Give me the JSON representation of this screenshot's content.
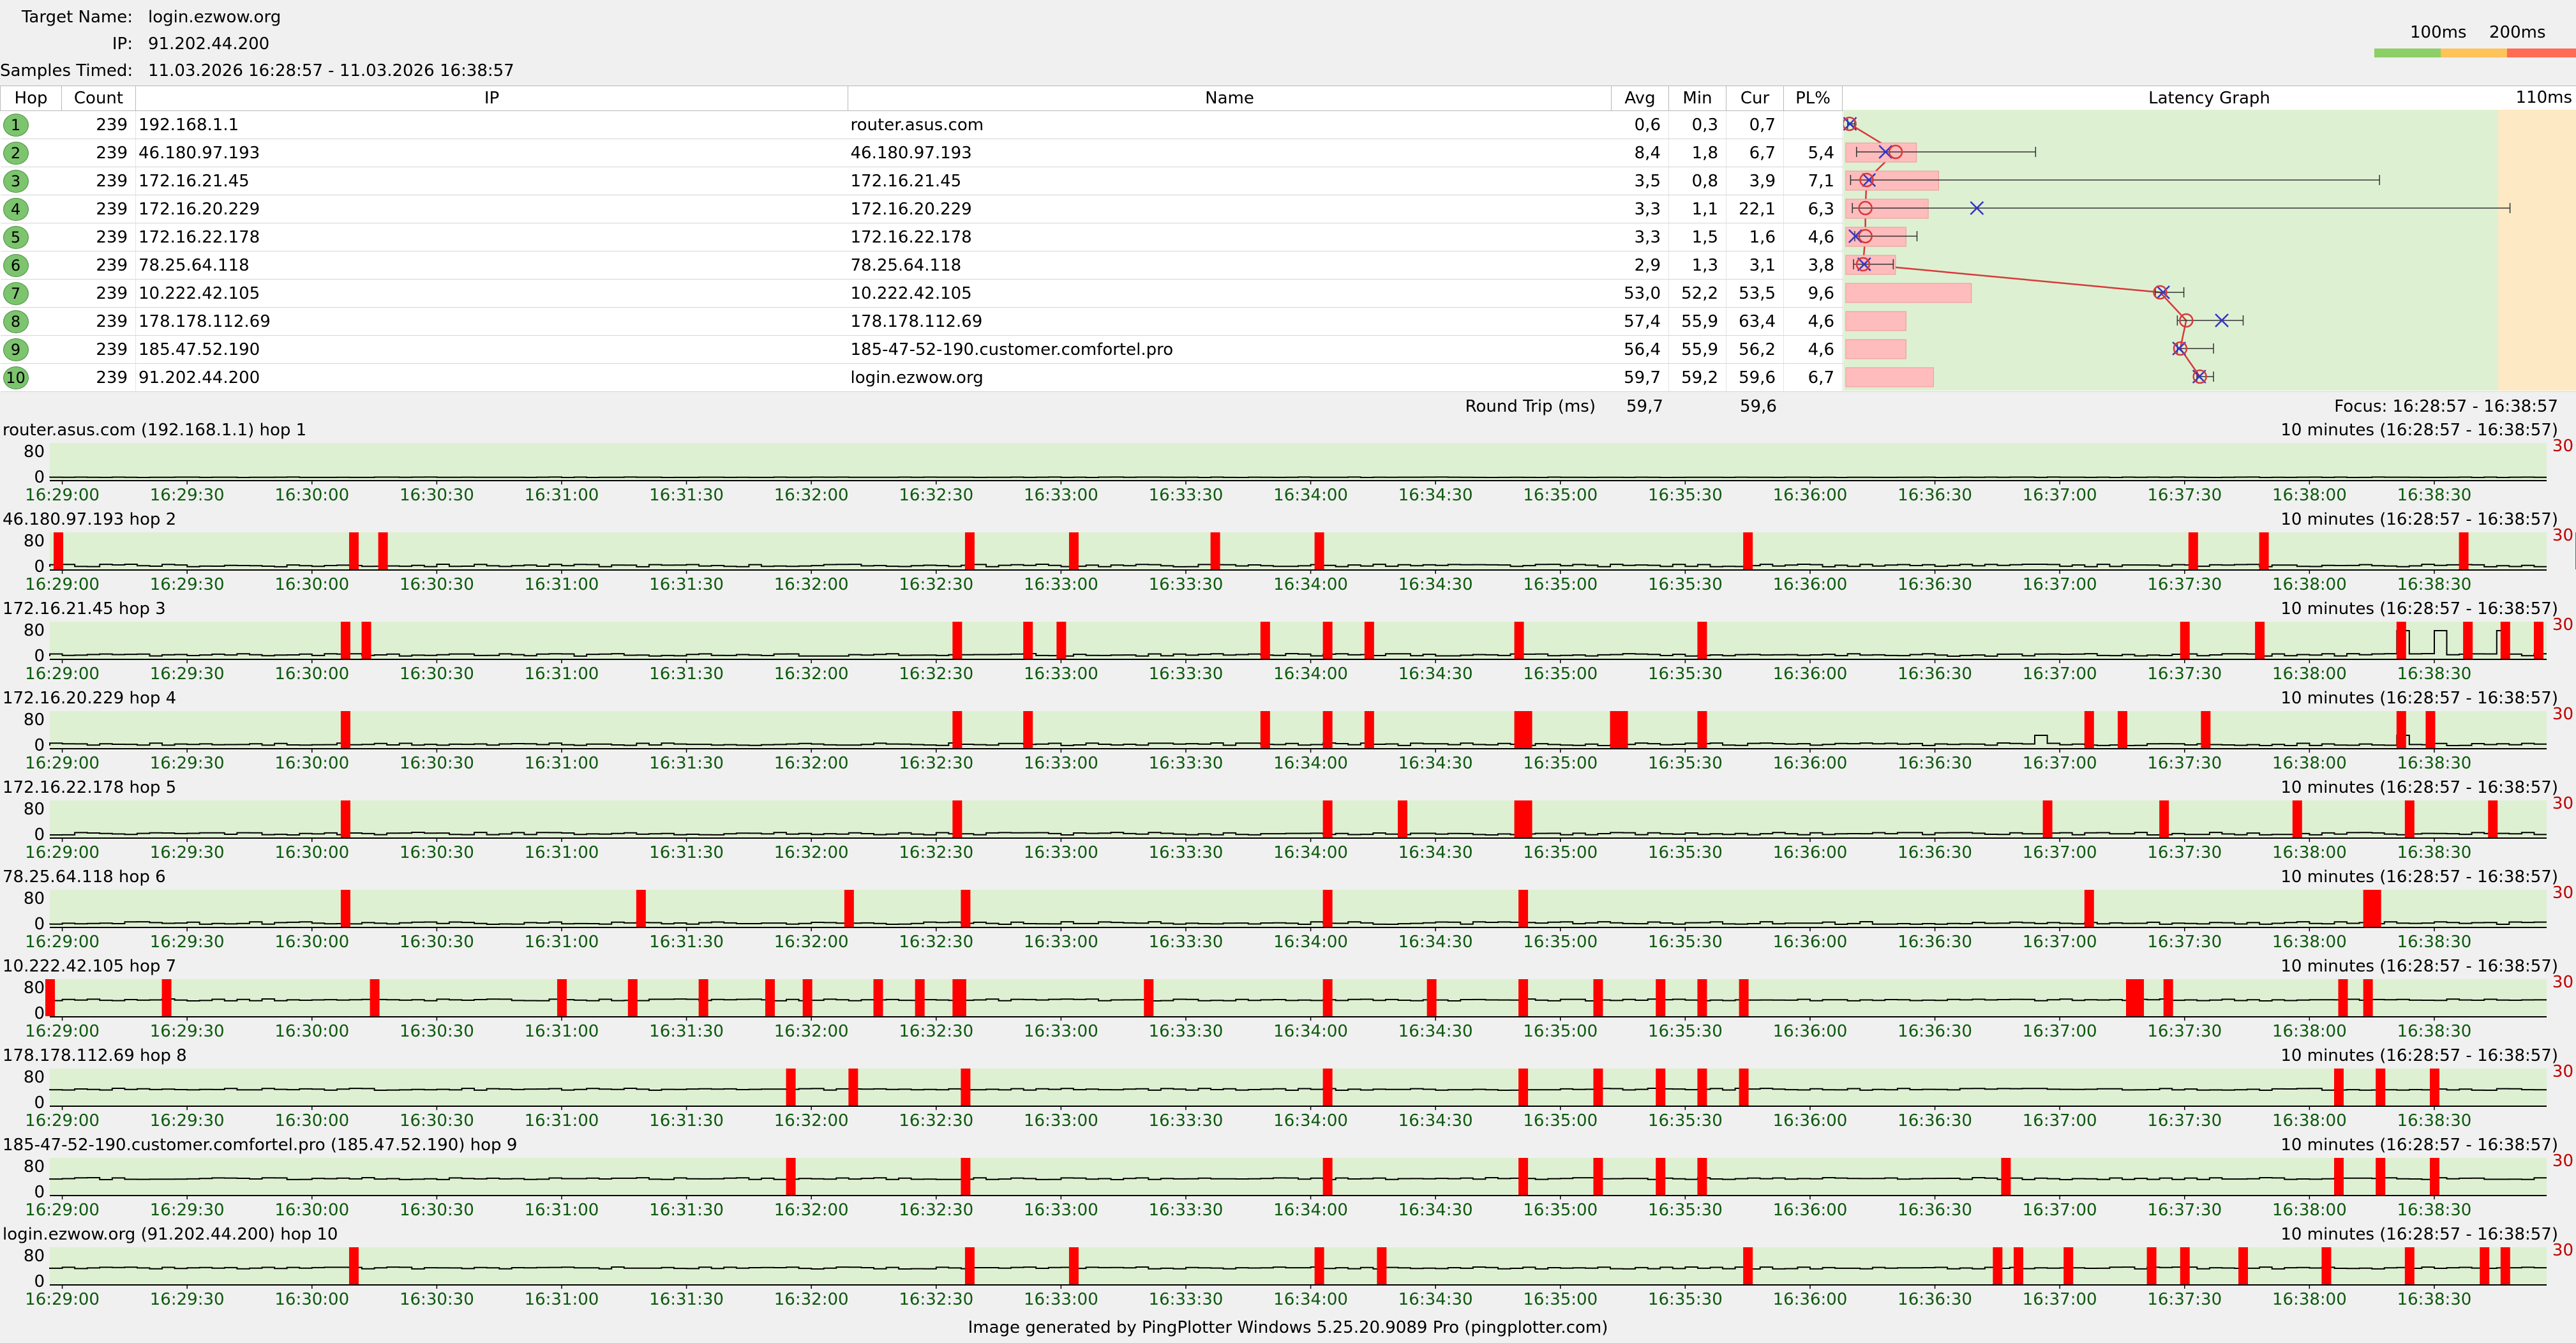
{
  "header": {
    "target_label": "Target Name:",
    "target_value": "login.ezwow.org",
    "ip_label": "IP:",
    "ip_value": "91.202.44.200",
    "samples_label": "Samples Timed:",
    "samples_value": "11.03.2026 16:28:57 - 11.03.2026 16:38:57"
  },
  "legend": {
    "label_100": "100ms",
    "label_200": "200ms",
    "colors": [
      "#8ccf66",
      "#ffc35a",
      "#ff6b55"
    ]
  },
  "table": {
    "columns": {
      "hop": "Hop",
      "count": "Count",
      "ip": "IP",
      "name": "Name",
      "avg": "Avg",
      "min": "Min",
      "cur": "Cur",
      "pl": "PL%",
      "graph": "Latency Graph",
      "scale": "110ms"
    },
    "rows": [
      {
        "hop": "1",
        "count": "239",
        "ip": "192.168.1.1",
        "name": "router.asus.com",
        "avg": "0,6",
        "min": "0,3",
        "cur": "0,7",
        "pl": ""
      },
      {
        "hop": "2",
        "count": "239",
        "ip": "46.180.97.193",
        "name": "46.180.97.193",
        "avg": "8,4",
        "min": "1,8",
        "cur": "6,7",
        "pl": "5,4"
      },
      {
        "hop": "3",
        "count": "239",
        "ip": "172.16.21.45",
        "name": "172.16.21.45",
        "avg": "3,5",
        "min": "0,8",
        "cur": "3,9",
        "pl": "7,1"
      },
      {
        "hop": "4",
        "count": "239",
        "ip": "172.16.20.229",
        "name": "172.16.20.229",
        "avg": "3,3",
        "min": "1,1",
        "cur": "22,1",
        "pl": "6,3"
      },
      {
        "hop": "5",
        "count": "239",
        "ip": "172.16.22.178",
        "name": "172.16.22.178",
        "avg": "3,3",
        "min": "1,5",
        "cur": "1,6",
        "pl": "4,6"
      },
      {
        "hop": "6",
        "count": "239",
        "ip": "78.25.64.118",
        "name": "78.25.64.118",
        "avg": "2,9",
        "min": "1,3",
        "cur": "3,1",
        "pl": "3,8"
      },
      {
        "hop": "7",
        "count": "239",
        "ip": "10.222.42.105",
        "name": "10.222.42.105",
        "avg": "53,0",
        "min": "52,2",
        "cur": "53,5",
        "pl": "9,6"
      },
      {
        "hop": "8",
        "count": "239",
        "ip": "178.178.112.69",
        "name": "178.178.112.69",
        "avg": "57,4",
        "min": "55,9",
        "cur": "63,4",
        "pl": "4,6"
      },
      {
        "hop": "9",
        "count": "239",
        "ip": "185.47.52.190",
        "name": "185-47-52-190.customer.comfortel.pro",
        "avg": "56,4",
        "min": "55,9",
        "cur": "56,2",
        "pl": "4,6"
      },
      {
        "hop": "10",
        "count": "239",
        "ip": "91.202.44.200",
        "name": "login.ezwow.org",
        "avg": "59,7",
        "min": "59,2",
        "cur": "59,6",
        "pl": "6,7"
      }
    ],
    "latency_graph": {
      "max_ms": 110,
      "max_latency_ms": [
        1.5,
        32,
        90,
        112,
        12,
        8,
        57,
        67,
        62,
        62
      ]
    }
  },
  "roundtrip": {
    "label": "Round Trip (ms)",
    "avg": "59,7",
    "cur": "59,6",
    "focus": "Focus: 16:28:57 - 16:38:57"
  },
  "timeline": {
    "range_label": "10 minutes (16:28:57 - 16:38:57)",
    "y_top": "80",
    "y_zero": "0",
    "y_right": "30",
    "ticks": [
      "16:29:00",
      "16:29:30",
      "16:30:00",
      "16:30:30",
      "16:31:00",
      "16:31:30",
      "16:32:00",
      "16:32:30",
      "16:33:00",
      "16:33:30",
      "16:34:00",
      "16:34:30",
      "16:35:00",
      "16:35:30",
      "16:36:00",
      "16:36:30",
      "16:37:00",
      "16:37:30",
      "16:38:00",
      "16:38:30"
    ],
    "panels": [
      {
        "title": "router.asus.com (192.168.1.1) hop 1",
        "loss_at": []
      },
      {
        "title": "46.180.97.193 hop 2",
        "loss_at": [
          73,
          80,
          221,
          246,
          280,
          305,
          408,
          515,
          532,
          580,
          608,
          633,
          653,
          685,
          2
        ]
      },
      {
        "title": "172.16.21.45 hop 3",
        "loss_at": [
          71,
          76,
          218,
          235,
          243,
          292,
          307,
          317,
          353,
          397,
          513,
          531,
          565,
          581,
          590,
          598
        ]
      },
      {
        "title": "172.16.20.229 hop 4",
        "loss_at": [
          71,
          218,
          235,
          292,
          307,
          317,
          353,
          355,
          376,
          378,
          397,
          490,
          498,
          518,
          565,
          572
        ]
      },
      {
        "title": "172.16.22.178 hop 5",
        "loss_at": [
          71,
          218,
          307,
          325,
          353,
          355,
          480,
          508,
          540,
          567,
          587
        ]
      },
      {
        "title": "78.25.64.118 hop 6",
        "loss_at": [
          71,
          142,
          192,
          220,
          307,
          354,
          490,
          557,
          559
        ]
      },
      {
        "title": "10.222.42.105 hop 7",
        "loss_at": [
          0,
          28,
          78,
          123,
          140,
          157,
          173,
          182,
          199,
          209,
          218,
          219,
          264,
          307,
          332,
          354,
          372,
          387,
          397,
          407,
          500,
          502,
          509,
          551,
          557
        ]
      },
      {
        "title": "178.178.112.69 hop 8",
        "loss_at": [
          178,
          193,
          220,
          307,
          354,
          372,
          387,
          397,
          407,
          550,
          560,
          573
        ]
      },
      {
        "title": "185-47-52-190.customer.comfortel.pro (185.47.52.190) hop 9",
        "loss_at": [
          178,
          220,
          307,
          354,
          372,
          387,
          397,
          470,
          550,
          560,
          573
        ]
      },
      {
        "title": "login.ezwow.org (91.202.44.200) hop 10",
        "loss_at": [
          73,
          221,
          246,
          305,
          320,
          408,
          468,
          473,
          485,
          505,
          513,
          527,
          547,
          567,
          585,
          590
        ]
      }
    ]
  },
  "footer": "Image generated by PingPlotter Windows 5.25.20.9089 Pro (pingplotter.com)"
}
